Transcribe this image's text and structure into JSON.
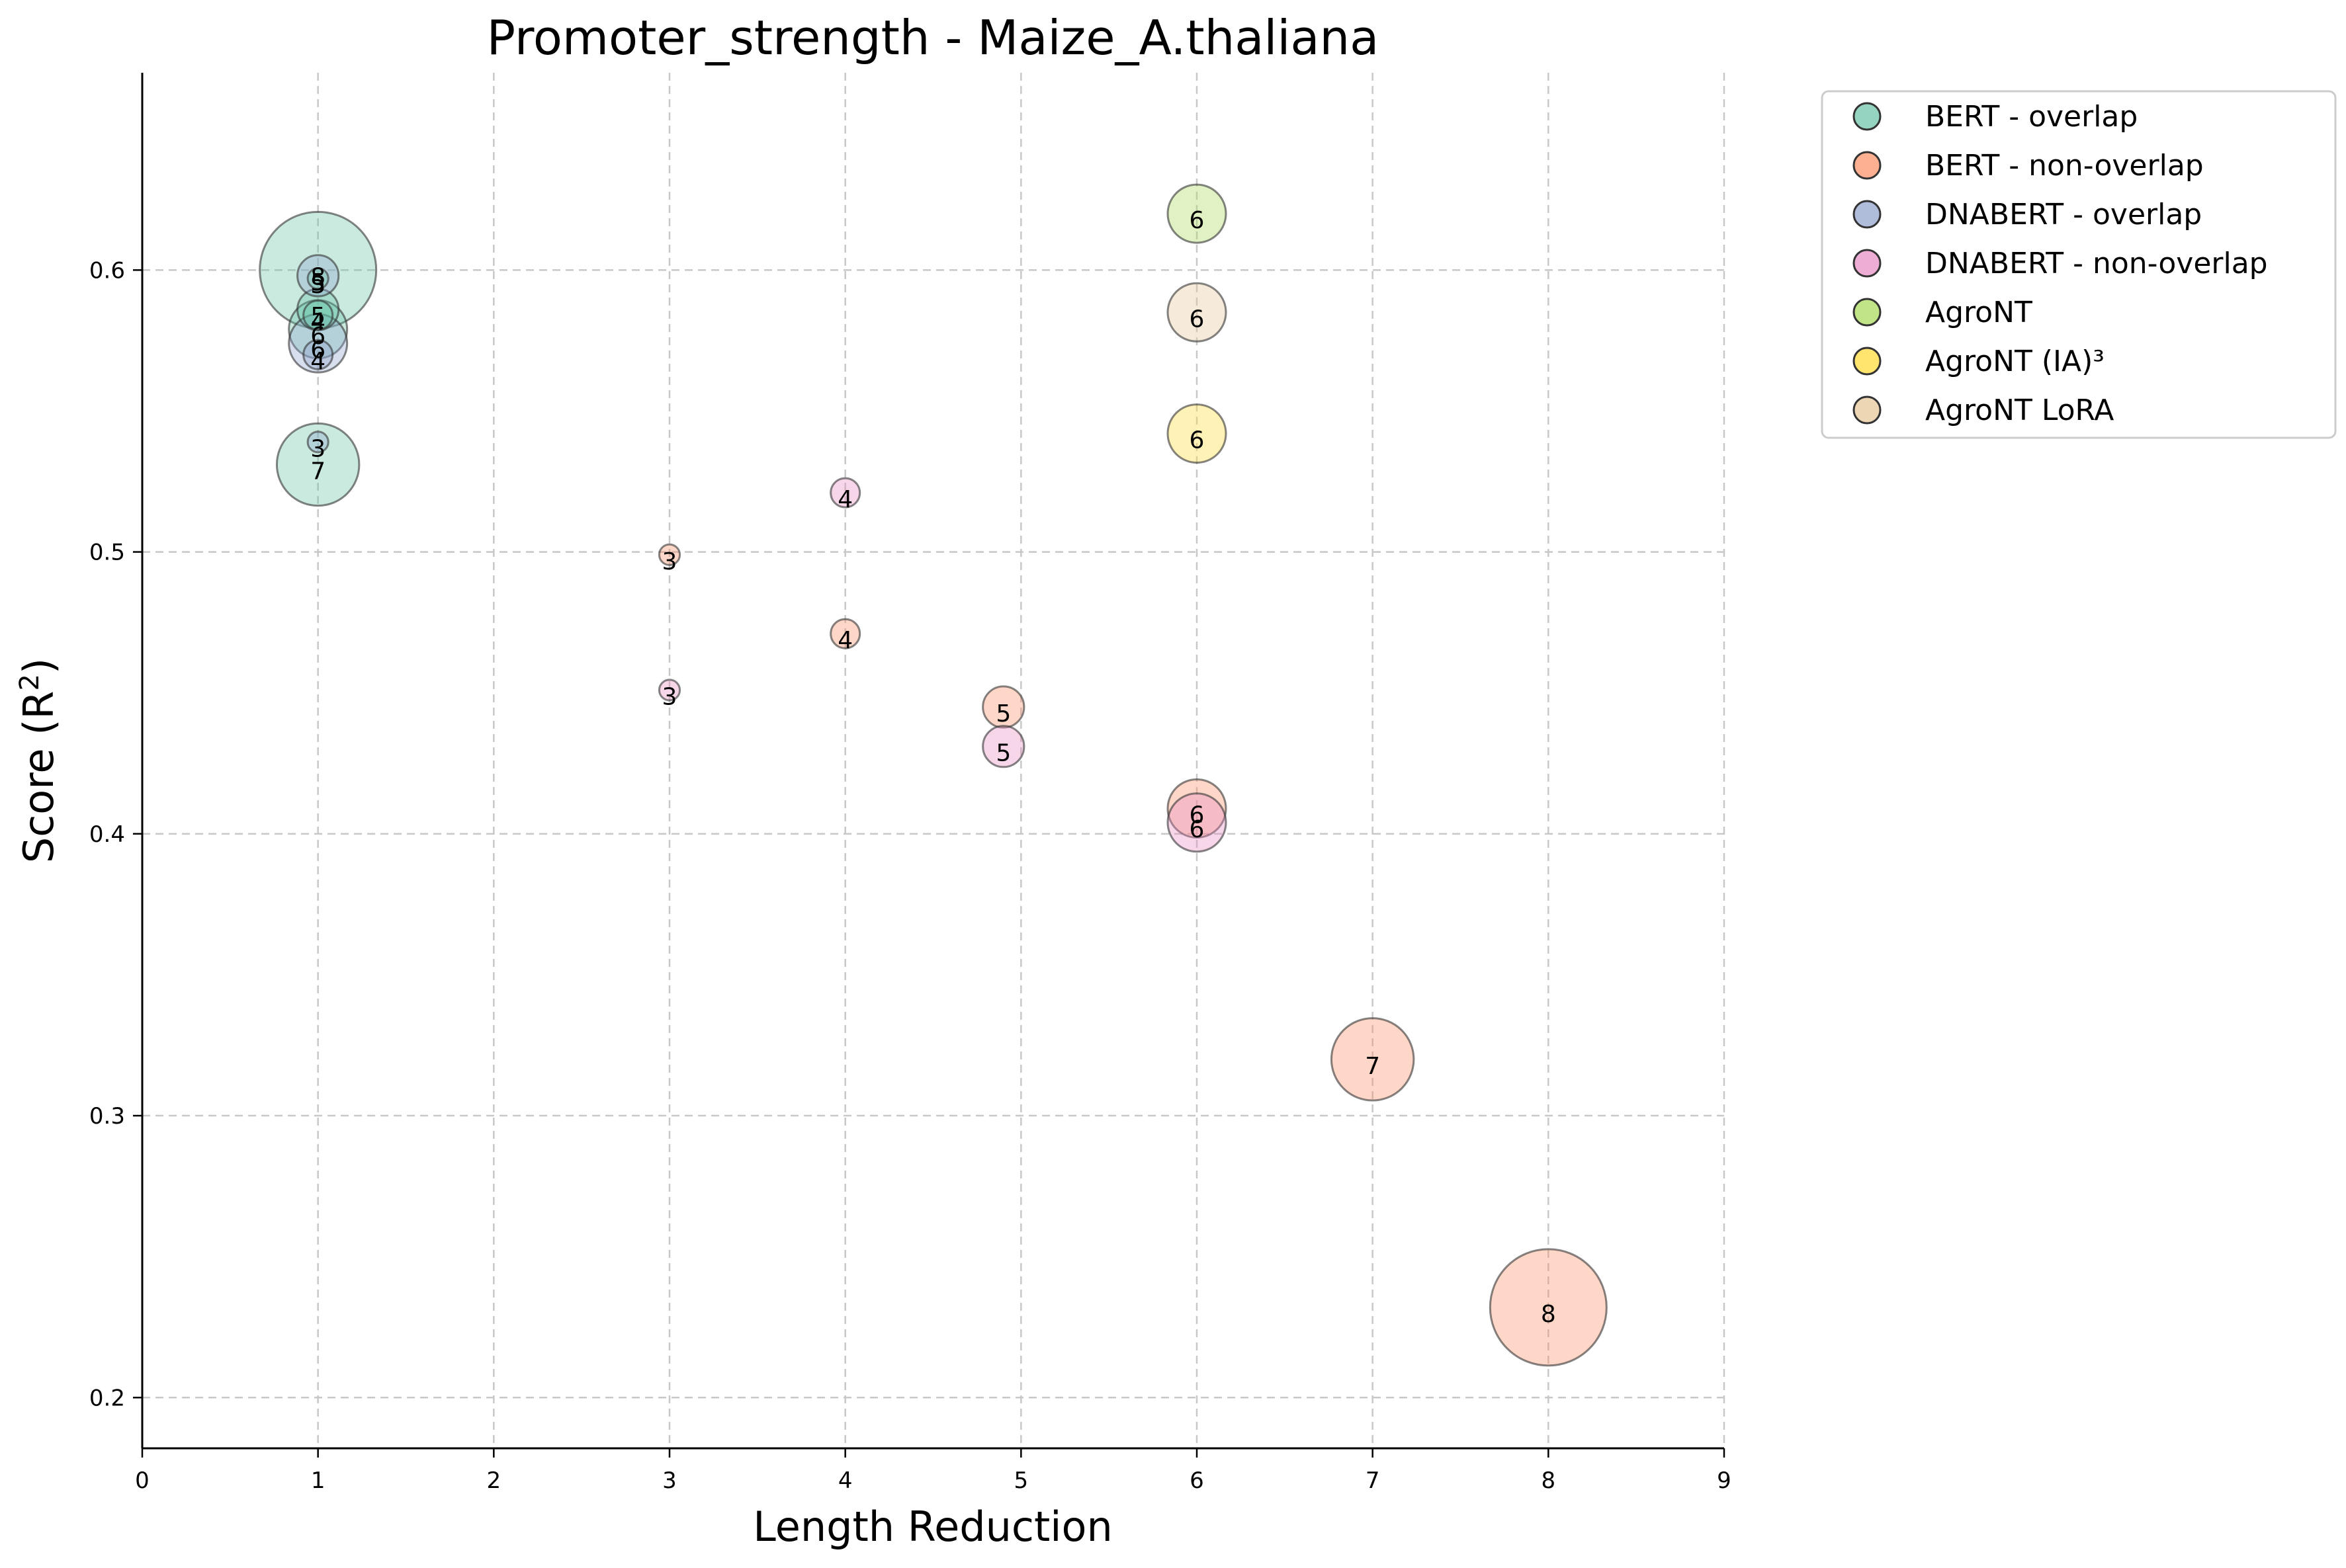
{
  "chart_data": {
    "type": "scatter",
    "title": "Promoter_strength - Maize_A.thaliana",
    "xlabel": "Length Reduction",
    "ylabel_main": "Score (R",
    "ylabel_sup": "2",
    "ylabel_close": ")",
    "xlim": [
      0,
      9
    ],
    "ylim": [
      0.182,
      0.67
    ],
    "xticks": [
      "0",
      "1",
      "2",
      "3",
      "4",
      "5",
      "6",
      "7",
      "8",
      "9"
    ],
    "yticks": [
      "0.2",
      "0.3",
      "0.4",
      "0.5",
      "0.6"
    ],
    "grid": true,
    "legend_position": "outside-right",
    "series": [
      {
        "name": "BERT - overlap",
        "color": "#66c2a5",
        "points": [
          {
            "x": 1,
            "y": 0.586,
            "size": 5,
            "label": "5"
          },
          {
            "x": 1,
            "y": 0.6,
            "size": 8,
            "label": "8"
          },
          {
            "x": 1,
            "y": 0.597,
            "size": 3,
            "label": "3"
          },
          {
            "x": 1,
            "y": 0.584,
            "size": 4,
            "label": "4"
          },
          {
            "x": 1,
            "y": 0.579,
            "size": 6,
            "label": "6"
          },
          {
            "x": 1,
            "y": 0.531,
            "size": 7,
            "label": "7"
          }
        ]
      },
      {
        "name": "BERT - non-overlap",
        "color": "#fc8d62",
        "points": [
          {
            "x": 3,
            "y": 0.499,
            "size": 3,
            "label": "3"
          },
          {
            "x": 4,
            "y": 0.471,
            "size": 4,
            "label": "4"
          },
          {
            "x": 4.9,
            "y": 0.445,
            "size": 5,
            "label": "5"
          },
          {
            "x": 6,
            "y": 0.409,
            "size": 6,
            "label": "6"
          },
          {
            "x": 7,
            "y": 0.32,
            "size": 7,
            "label": "7"
          },
          {
            "x": 8,
            "y": 0.232,
            "size": 8,
            "label": "8"
          }
        ]
      },
      {
        "name": "DNABERT - overlap",
        "color": "#8da0cb",
        "points": [
          {
            "x": 1,
            "y": 0.598,
            "size": 5,
            "label": "5"
          },
          {
            "x": 1,
            "y": 0.574,
            "size": 6,
            "label": "6"
          },
          {
            "x": 1,
            "y": 0.57,
            "size": 4,
            "label": "4"
          },
          {
            "x": 1,
            "y": 0.539,
            "size": 3,
            "label": "3"
          }
        ]
      },
      {
        "name": "DNABERT - non-overlap",
        "color": "#e78ac3",
        "points": [
          {
            "x": 3,
            "y": 0.451,
            "size": 3,
            "label": "3"
          },
          {
            "x": 4,
            "y": 0.521,
            "size": 4,
            "label": "4"
          },
          {
            "x": 4.9,
            "y": 0.431,
            "size": 5,
            "label": "5"
          },
          {
            "x": 6,
            "y": 0.404,
            "size": 6,
            "label": "6"
          }
        ]
      },
      {
        "name": "AgroNT",
        "color": "#a6d854",
        "points": [
          {
            "x": 6,
            "y": 0.62,
            "size": 6,
            "label": "6"
          }
        ]
      },
      {
        "name": "AgroNT (IA)³",
        "color": "#ffd92f",
        "points": [
          {
            "x": 6,
            "y": 0.542,
            "size": 6,
            "label": "6"
          }
        ]
      },
      {
        "name": "AgroNT LoRA",
        "color": "#e5c494",
        "points": [
          {
            "x": 6,
            "y": 0.585,
            "size": 6,
            "label": "6"
          }
        ]
      }
    ]
  }
}
